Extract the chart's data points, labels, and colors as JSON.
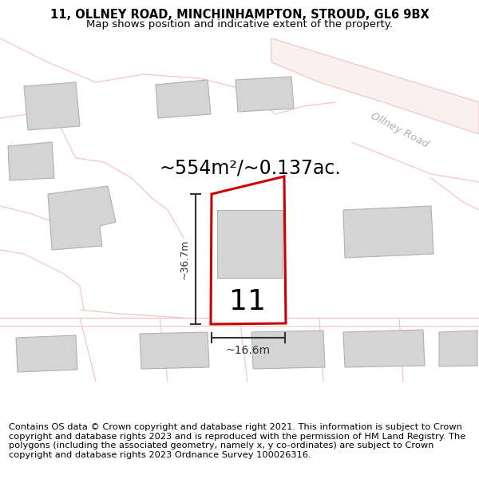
{
  "title_line1": "11, OLLNEY ROAD, MINCHINHAMPTON, STROUD, GL6 9BX",
  "title_line2": "Map shows position and indicative extent of the property.",
  "area_label": "~554m²/~0.137ac.",
  "width_label": "~16.6m",
  "height_label": "~36.7m",
  "property_number": "11",
  "footer_text": "Contains OS data © Crown copyright and database right 2021. This information is subject to Crown copyright and database rights 2023 and is reproduced with the permission of HM Land Registry. The polygons (including the associated geometry, namely x, y co-ordinates) are subject to Crown copyright and database rights 2023 Ordnance Survey 100026316.",
  "bg_color": "#ffffff",
  "map_bg": "#ffffff",
  "property_fill": "#ffffff",
  "property_edge": "#cc0000",
  "building_fill": "#d4d4d4",
  "building_edge": "#b0b0b0",
  "road_color": "#f5c0c0",
  "road_label_color": "#b0b0b0",
  "dimension_color": "#333333",
  "title_fontsize": 10.5,
  "subtitle_fontsize": 9.5,
  "area_fontsize": 17,
  "number_fontsize": 26,
  "dim_fontsize": 9,
  "footer_fontsize": 8.2,
  "ollney_road_label": "Ollney Road"
}
